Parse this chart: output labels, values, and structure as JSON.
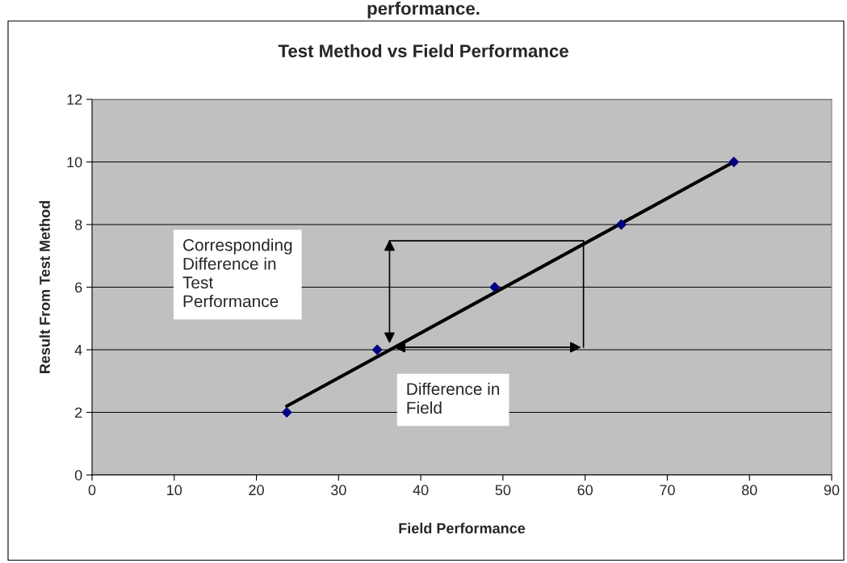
{
  "chart_data": {
    "type": "scatter",
    "title": "Test Method vs Field Performance",
    "xlabel": "Field Performance",
    "ylabel": "Result From Test Method",
    "x": [
      23.7,
      34.7,
      49.0,
      64.4,
      78.1
    ],
    "series": [
      {
        "color": "#000080",
        "values": [
          2,
          4,
          6,
          8,
          10
        ],
        "marker": "diamond"
      },
      {
        "type": "line",
        "color": "#000000",
        "x": [
          23.7,
          78.1
        ],
        "values": [
          2.2,
          10.0
        ],
        "marker": "none"
      }
    ],
    "annotations": [
      "performance.",
      "Corresponding\nDifference in\nTest\nPerformance",
      "Difference in\nField"
    ],
    "xlim": [
      0,
      90
    ],
    "xticks": [
      0,
      10,
      20,
      30,
      40,
      50,
      60,
      70,
      80,
      90
    ],
    "ylim": [
      0,
      12
    ],
    "yticks": [
      0,
      2,
      4,
      6,
      8,
      10,
      12
    ],
    "grid": "y",
    "legend": false
  }
}
